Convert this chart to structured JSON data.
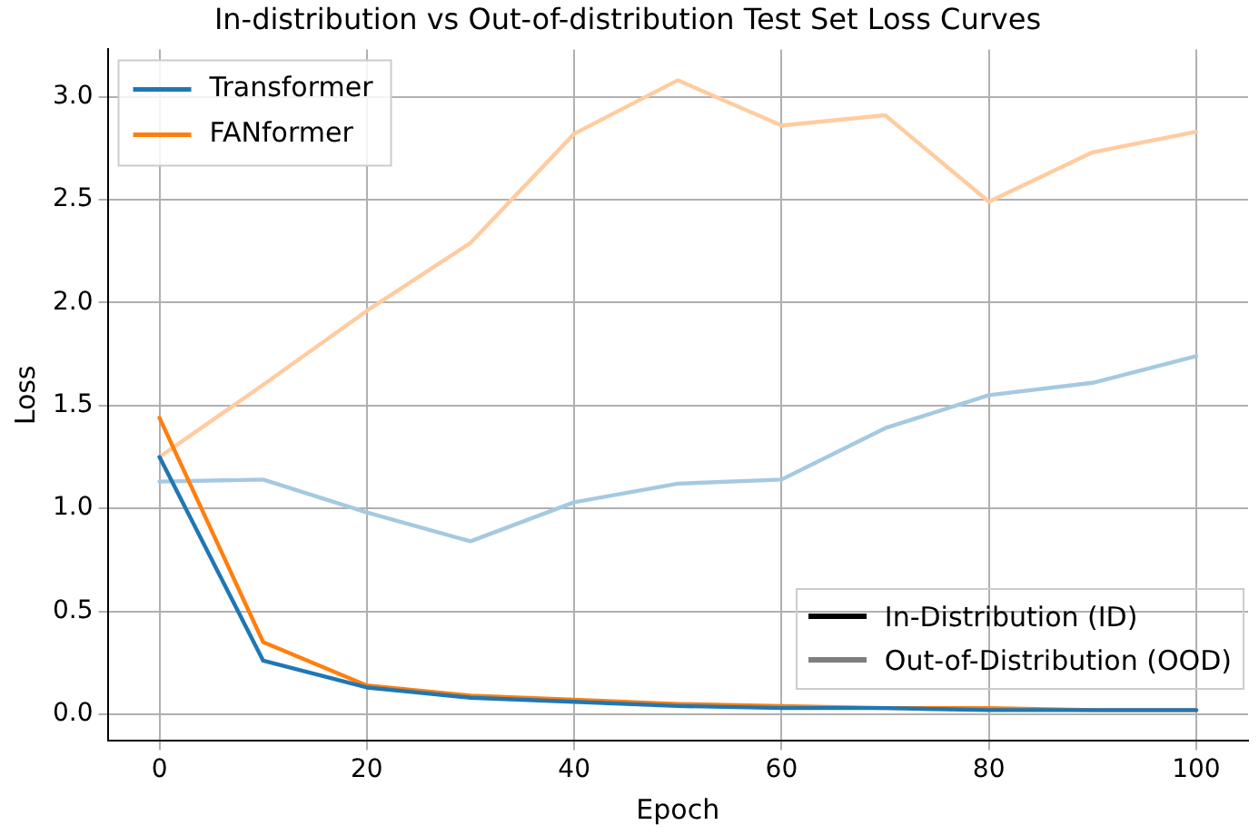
{
  "chart_data": {
    "type": "line",
    "title": "In-distribution vs Out-of-distribution Test Set Loss Curves",
    "xlabel": "Epoch",
    "ylabel": "Loss",
    "x": [
      0,
      10,
      20,
      30,
      40,
      50,
      60,
      70,
      80,
      90,
      100
    ],
    "series": [
      {
        "name": "Transformer",
        "color": "#1f77b4",
        "values": [
          1.25,
          0.26,
          0.13,
          0.08,
          0.06,
          0.04,
          0.03,
          0.03,
          0.02,
          0.02,
          0.02
        ]
      },
      {
        "name": "FANformer",
        "color": "#ff7f0e",
        "values": [
          1.44,
          0.35,
          0.14,
          0.09,
          0.07,
          0.05,
          0.04,
          0.03,
          0.03,
          0.02,
          0.02
        ]
      },
      {
        "color": "#a5c9e1",
        "values": [
          1.13,
          1.14,
          0.98,
          0.84,
          1.03,
          1.12,
          1.14,
          1.39,
          1.55,
          1.61,
          1.74
        ]
      },
      {
        "color": "#ffcc9f",
        "values": [
          1.25,
          1.6,
          1.96,
          2.29,
          2.82,
          3.08,
          2.86,
          2.91,
          2.49,
          2.73,
          2.83
        ]
      }
    ],
    "xlim": [
      -5,
      105
    ],
    "xticks": [
      0,
      20,
      40,
      60,
      80,
      100
    ],
    "ylim": [
      -0.13,
      3.23
    ],
    "yticks": [
      {
        "value": 0,
        "label": "0.0"
      },
      {
        "value": 0.5,
        "label": "0.5"
      },
      {
        "value": 1,
        "label": "1.0"
      },
      {
        "value": 1.5,
        "label": "1.5"
      },
      {
        "value": 2,
        "label": "2.0"
      },
      {
        "value": 2.5,
        "label": "2.5"
      },
      {
        "value": 3,
        "label": "3.0"
      }
    ],
    "grid": true,
    "legend": "top left",
    "line_style": "solid",
    "marker": "none",
    "annotations": [
      "In-Distribution (ID)",
      "Out-of-Distribution (OOD)"
    ]
  }
}
